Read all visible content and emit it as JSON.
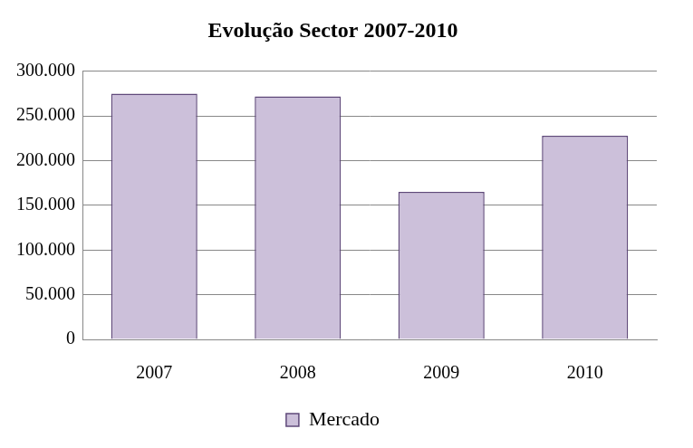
{
  "chart_data": {
    "type": "bar",
    "title": "Evolução Sector 2007-2010",
    "categories": [
      "2007",
      "2008",
      "2009",
      "2010"
    ],
    "series": [
      {
        "name": "Mercado",
        "color": "#ccc0da",
        "values": [
          275000,
          272000,
          165000,
          228000
        ]
      }
    ],
    "ylim": [
      0,
      300000
    ],
    "yticks": [
      0,
      {
        "value": 50000,
        "label": "50.000"
      },
      {
        "value": 100000,
        "label": "100.000"
      },
      {
        "value": 150000,
        "label": "150.000"
      },
      {
        "value": 200000,
        "label": "200.000"
      },
      {
        "value": 250000,
        "label": "250.000"
      },
      {
        "value": 300000,
        "label": "300.000"
      }
    ],
    "grid": true,
    "legend": "bottom"
  }
}
